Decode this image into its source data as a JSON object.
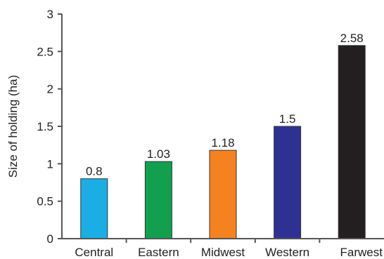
{
  "chart_data": {
    "type": "bar",
    "title": "",
    "xlabel": "",
    "ylabel": "Size of holding (ha)",
    "categories": [
      "Central",
      "Eastern",
      "Midwest",
      "Western",
      "Farwest"
    ],
    "values": [
      0.8,
      1.03,
      1.18,
      1.5,
      2.58
    ],
    "data_labels": [
      "0.8",
      "1.03",
      "1.18",
      "1.5",
      "2.58"
    ],
    "colors": [
      "#1aaee5",
      "#12a04f",
      "#f58220",
      "#2e3192",
      "#231f20"
    ],
    "ylim": [
      0,
      3
    ],
    "yticks": [
      0,
      0.5,
      1,
      1.5,
      2,
      2.5,
      3
    ],
    "ytick_labels": [
      "0",
      "0.5",
      "1",
      "1.5",
      "2",
      "2.5",
      "3"
    ],
    "grid": false,
    "legend": "none"
  }
}
